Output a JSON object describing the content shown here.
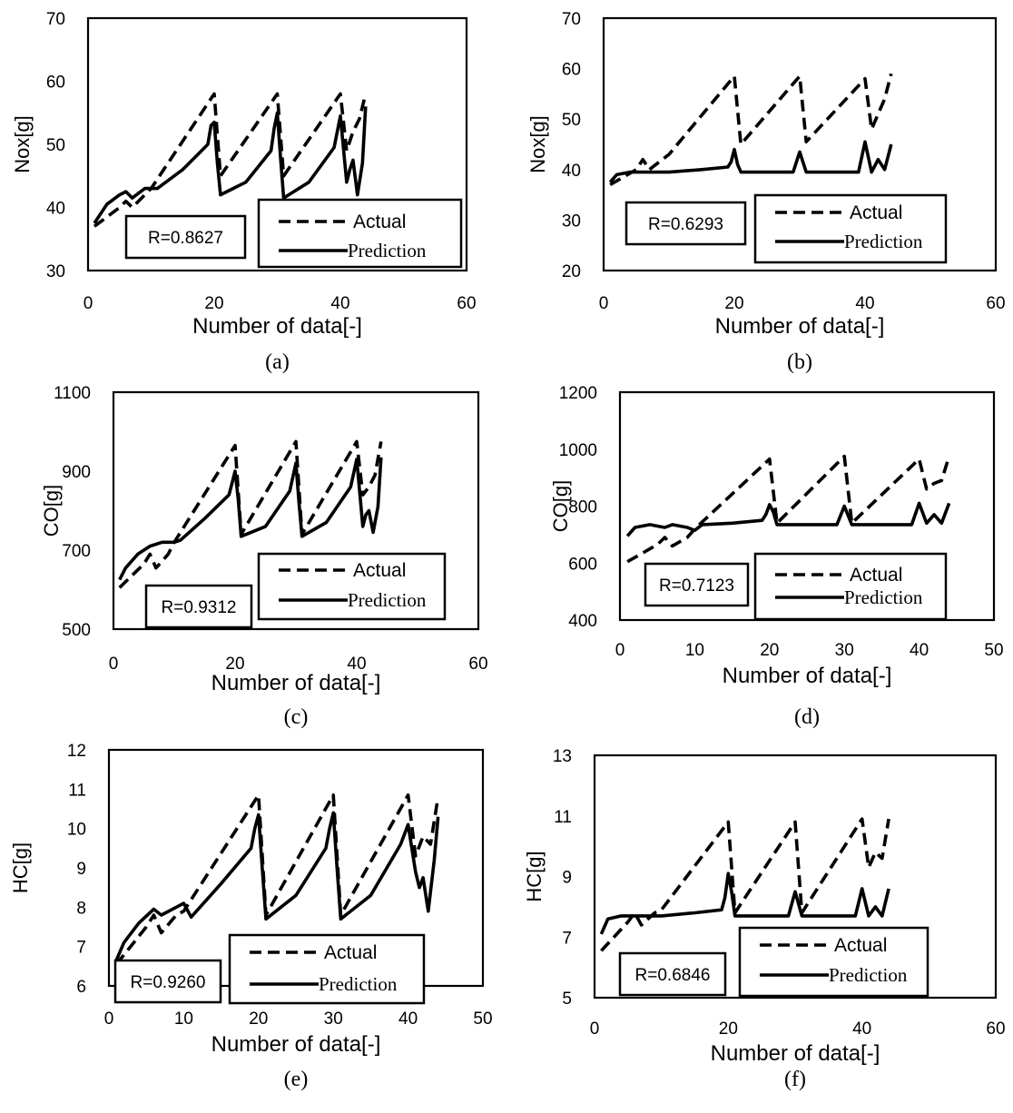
{
  "chart_data": [
    {
      "type": "line",
      "caption": "(a)",
      "xlabel": "Number of data[-]",
      "ylabel": "Nox[g]",
      "xlim": [
        0,
        60
      ],
      "ylim": [
        30,
        70
      ],
      "xticks": [
        0,
        20,
        40,
        60
      ],
      "yticks": [
        30,
        40,
        50,
        60,
        70
      ],
      "r_label": "R=0.8627",
      "series": [
        {
          "name": "Actual",
          "style": "dashed",
          "points": [
            [
              1,
              37
            ],
            [
              5,
              40
            ],
            [
              6,
              41
            ],
            [
              7,
              40
            ],
            [
              8,
              41
            ],
            [
              10,
              43
            ],
            [
              20,
              58
            ],
            [
              21,
              45
            ],
            [
              30,
              58
            ],
            [
              31,
              45
            ],
            [
              40,
              58
            ],
            [
              41,
              49
            ],
            [
              42,
              52
            ],
            [
              43,
              54
            ],
            [
              44,
              58
            ]
          ]
        },
        {
          "name": "Prediction",
          "style": "solid",
          "points": [
            [
              1,
              37.5
            ],
            [
              2,
              39
            ],
            [
              3,
              40.5
            ],
            [
              5,
              42
            ],
            [
              6,
              42.5
            ],
            [
              7,
              41.5
            ],
            [
              9,
              43
            ],
            [
              10,
              43
            ],
            [
              11,
              43
            ],
            [
              15,
              46
            ],
            [
              18,
              49
            ],
            [
              19,
              50
            ],
            [
              19.5,
              53
            ],
            [
              20,
              53.5
            ],
            [
              20.5,
              47
            ],
            [
              21,
              42
            ],
            [
              25,
              44
            ],
            [
              29,
              49
            ],
            [
              29.5,
              52.5
            ],
            [
              30,
              55
            ],
            [
              30.5,
              48
            ],
            [
              31,
              41.5
            ],
            [
              35,
              44
            ],
            [
              39,
              49.5
            ],
            [
              40,
              54.5
            ],
            [
              41,
              44
            ],
            [
              41.5,
              46
            ],
            [
              42,
              47.5
            ],
            [
              42.7,
              42
            ],
            [
              43.5,
              47
            ],
            [
              44,
              56
            ]
          ]
        }
      ]
    },
    {
      "type": "line",
      "caption": "(b)",
      "xlabel": "Number of data[-]",
      "ylabel": "Nox[g]",
      "xlim": [
        0,
        60
      ],
      "ylim": [
        20,
        70
      ],
      "xticks": [
        0,
        20,
        40,
        60
      ],
      "yticks": [
        20,
        30,
        40,
        50,
        60,
        70
      ],
      "r_label": "R=0.6293",
      "series": [
        {
          "name": "Actual",
          "style": "dashed",
          "points": [
            [
              1,
              37
            ],
            [
              5,
              40
            ],
            [
              6,
              42
            ],
            [
              7,
              40
            ],
            [
              8,
              41
            ],
            [
              10,
              43
            ],
            [
              20,
              58.5
            ],
            [
              21,
              45
            ],
            [
              30,
              58.5
            ],
            [
              31,
              45.5
            ],
            [
              40,
              58
            ],
            [
              41,
              48
            ],
            [
              42,
              51
            ],
            [
              43,
              54
            ],
            [
              44,
              59
            ]
          ]
        },
        {
          "name": "Prediction",
          "style": "solid",
          "points": [
            [
              1,
              37.5
            ],
            [
              2,
              39
            ],
            [
              4,
              39.5
            ],
            [
              10,
              39.5
            ],
            [
              15,
              40
            ],
            [
              19,
              40.5
            ],
            [
              19.5,
              41.5
            ],
            [
              20,
              44
            ],
            [
              20.5,
              41
            ],
            [
              21,
              39.5
            ],
            [
              29,
              39.5
            ],
            [
              30,
              43.5
            ],
            [
              31,
              39.5
            ],
            [
              39,
              39.5
            ],
            [
              40,
              45.5
            ],
            [
              41,
              39.5
            ],
            [
              42,
              42
            ],
            [
              43,
              40
            ],
            [
              44,
              45
            ]
          ]
        }
      ]
    },
    {
      "type": "line",
      "caption": "(c)",
      "xlabel": "Number of data[-]",
      "ylabel": "CO[g]",
      "xlim": [
        0,
        60
      ],
      "ylim": [
        500,
        1100
      ],
      "xticks": [
        0,
        20,
        40,
        60
      ],
      "yticks": [
        500,
        700,
        900,
        1100
      ],
      "r_label": "R=0.9312",
      "series": [
        {
          "name": "Actual",
          "style": "dashed",
          "points": [
            [
              1,
              605
            ],
            [
              5,
              665
            ],
            [
              6,
              690
            ],
            [
              7,
              655
            ],
            [
              9,
              690
            ],
            [
              10,
              720
            ],
            [
              20,
              965
            ],
            [
              21,
              740
            ],
            [
              30,
              975
            ],
            [
              31,
              740
            ],
            [
              40,
              975
            ],
            [
              41,
              840
            ],
            [
              42,
              860
            ],
            [
              43,
              890
            ],
            [
              44,
              975
            ]
          ]
        },
        {
          "name": "Prediction",
          "style": "solid",
          "points": [
            [
              1,
              625
            ],
            [
              2,
              655
            ],
            [
              4,
              690
            ],
            [
              6,
              710
            ],
            [
              8,
              720
            ],
            [
              10,
              720
            ],
            [
              11,
              725
            ],
            [
              15,
              780
            ],
            [
              19,
              840
            ],
            [
              19.5,
              870
            ],
            [
              20,
              900
            ],
            [
              20.5,
              830
            ],
            [
              21,
              735
            ],
            [
              25,
              760
            ],
            [
              29,
              850
            ],
            [
              29.5,
              885
            ],
            [
              30,
              920
            ],
            [
              30.5,
              820
            ],
            [
              31,
              735
            ],
            [
              35,
              770
            ],
            [
              39,
              860
            ],
            [
              40,
              930
            ],
            [
              41,
              760
            ],
            [
              41.5,
              790
            ],
            [
              42,
              800
            ],
            [
              42.7,
              745
            ],
            [
              43.5,
              810
            ],
            [
              44,
              935
            ]
          ]
        }
      ]
    },
    {
      "type": "line",
      "caption": "(d)",
      "xlabel": "Number of data[-]",
      "ylabel": "CO[g]",
      "xlim": [
        0,
        50
      ],
      "ylim": [
        400,
        1200
      ],
      "xticks": [
        0,
        10,
        20,
        30,
        40,
        50
      ],
      "yticks": [
        400,
        600,
        800,
        1000,
        1200
      ],
      "r_label": "R=0.7123",
      "series": [
        {
          "name": "Actual",
          "style": "dashed",
          "points": [
            [
              1,
              605
            ],
            [
              5,
              665
            ],
            [
              6,
              690
            ],
            [
              7,
              660
            ],
            [
              9,
              690
            ],
            [
              10,
              720
            ],
            [
              20,
              965
            ],
            [
              21,
              740
            ],
            [
              30,
              975
            ],
            [
              31,
              740
            ],
            [
              40,
              965
            ],
            [
              41,
              860
            ],
            [
              42,
              880
            ],
            [
              43,
              890
            ],
            [
              44,
              975
            ]
          ]
        },
        {
          "name": "Prediction",
          "style": "solid",
          "points": [
            [
              1,
              695
            ],
            [
              2,
              725
            ],
            [
              4,
              735
            ],
            [
              5,
              730
            ],
            [
              6,
              725
            ],
            [
              7,
              735
            ],
            [
              9,
              725
            ],
            [
              10,
              715
            ],
            [
              11,
              735
            ],
            [
              15,
              740
            ],
            [
              19,
              750
            ],
            [
              19.5,
              770
            ],
            [
              20,
              805
            ],
            [
              20.5,
              780
            ],
            [
              21,
              735
            ],
            [
              29,
              735
            ],
            [
              30,
              800
            ],
            [
              31,
              735
            ],
            [
              39,
              735
            ],
            [
              40,
              810
            ],
            [
              41,
              740
            ],
            [
              42,
              770
            ],
            [
              43,
              740
            ],
            [
              44,
              810
            ]
          ]
        }
      ]
    },
    {
      "type": "line",
      "caption": "(e)",
      "xlabel": "Number of data[-]",
      "ylabel": "HC[g]",
      "xlim": [
        0,
        50
      ],
      "ylim": [
        6,
        12
      ],
      "xticks": [
        0,
        10,
        20,
        30,
        40,
        50
      ],
      "yticks": [
        6,
        7,
        8,
        9,
        10,
        11,
        12
      ],
      "r_label": "R=0.9260",
      "series": [
        {
          "name": "Actual",
          "style": "dashed",
          "points": [
            [
              1,
              6.55
            ],
            [
              5,
              7.5
            ],
            [
              6,
              7.8
            ],
            [
              7,
              7.35
            ],
            [
              9,
              7.8
            ],
            [
              10,
              7.9
            ],
            [
              20,
              10.85
            ],
            [
              21,
              7.8
            ],
            [
              30,
              10.85
            ],
            [
              31,
              7.8
            ],
            [
              40,
              10.85
            ],
            [
              41,
              9.3
            ],
            [
              42,
              9.8
            ],
            [
              43,
              9.6
            ],
            [
              44,
              10.8
            ]
          ]
        },
        {
          "name": "Prediction",
          "style": "solid",
          "points": [
            [
              1,
              6.65
            ],
            [
              2,
              7.1
            ],
            [
              4,
              7.6
            ],
            [
              6,
              7.95
            ],
            [
              7,
              7.8
            ],
            [
              9,
              8
            ],
            [
              10,
              8.1
            ],
            [
              11,
              7.75
            ],
            [
              15,
              8.6
            ],
            [
              19,
              9.5
            ],
            [
              19.5,
              10
            ],
            [
              20,
              10.35
            ],
            [
              20.5,
              9
            ],
            [
              21,
              7.7
            ],
            [
              25,
              8.3
            ],
            [
              29,
              9.5
            ],
            [
              29.5,
              10
            ],
            [
              30,
              10.4
            ],
            [
              30.5,
              9
            ],
            [
              31,
              7.7
            ],
            [
              35,
              8.3
            ],
            [
              39,
              9.6
            ],
            [
              40,
              10.1
            ],
            [
              41,
              8.9
            ],
            [
              41.5,
              8.5
            ],
            [
              42,
              8.75
            ],
            [
              42.7,
              7.9
            ],
            [
              43.5,
              9.2
            ],
            [
              44,
              10.3
            ]
          ]
        }
      ]
    },
    {
      "type": "line",
      "caption": "(f)",
      "xlabel": "Number of data[-]",
      "ylabel": "HC[g]",
      "xlim": [
        0,
        60
      ],
      "ylim": [
        5,
        13
      ],
      "xticks": [
        0,
        20,
        40,
        60
      ],
      "yticks": [
        5,
        7,
        9,
        11,
        13
      ],
      "r_label": "R=0.6846",
      "series": [
        {
          "name": "Actual",
          "style": "dashed",
          "points": [
            [
              1,
              6.55
            ],
            [
              5,
              7.5
            ],
            [
              6,
              7.8
            ],
            [
              7,
              7.4
            ],
            [
              9,
              7.8
            ],
            [
              10,
              7.9
            ],
            [
              20,
              10.8
            ],
            [
              21,
              7.8
            ],
            [
              30,
              10.8
            ],
            [
              31,
              7.8
            ],
            [
              40,
              10.9
            ],
            [
              41,
              9.3
            ],
            [
              42,
              9.8
            ],
            [
              43,
              9.6
            ],
            [
              44,
              10.9
            ]
          ]
        },
        {
          "name": "Prediction",
          "style": "solid",
          "points": [
            [
              1,
              7.1
            ],
            [
              2,
              7.6
            ],
            [
              4,
              7.7
            ],
            [
              10,
              7.7
            ],
            [
              15,
              7.8
            ],
            [
              19,
              7.9
            ],
            [
              19.5,
              8.3
            ],
            [
              20,
              9.1
            ],
            [
              20.5,
              8.5
            ],
            [
              21,
              7.7
            ],
            [
              29,
              7.7
            ],
            [
              30,
              8.5
            ],
            [
              31,
              7.7
            ],
            [
              39,
              7.7
            ],
            [
              40,
              8.6
            ],
            [
              41,
              7.7
            ],
            [
              42,
              8
            ],
            [
              43,
              7.7
            ],
            [
              44,
              8.6
            ]
          ]
        }
      ]
    }
  ]
}
